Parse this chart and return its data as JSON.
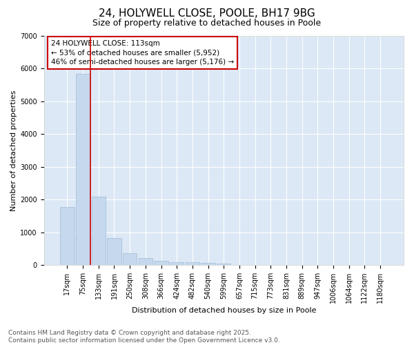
{
  "title1": "24, HOLYWELL CLOSE, POOLE, BH17 9BG",
  "title2": "Size of property relative to detached houses in Poole",
  "xlabel": "Distribution of detached houses by size in Poole",
  "ylabel": "Number of detached properties",
  "categories": [
    "17sqm",
    "75sqm",
    "133sqm",
    "191sqm",
    "250sqm",
    "308sqm",
    "366sqm",
    "424sqm",
    "482sqm",
    "540sqm",
    "599sqm",
    "657sqm",
    "715sqm",
    "773sqm",
    "831sqm",
    "889sqm",
    "947sqm",
    "1006sqm",
    "1064sqm",
    "1122sqm",
    "1180sqm"
  ],
  "values": [
    1780,
    5830,
    2090,
    830,
    370,
    220,
    130,
    90,
    80,
    60,
    50,
    5,
    3,
    2,
    1,
    1,
    1,
    1,
    1,
    1,
    1
  ],
  "bar_color": "#c5d8ed",
  "bar_edge_color": "#a0bcd8",
  "vline_color": "#cc0000",
  "vline_position": 1.5,
  "annotation_text": "24 HOLYWELL CLOSE: 113sqm\n← 53% of detached houses are smaller (5,952)\n46% of semi-detached houses are larger (5,176) →",
  "annotation_box_edge_color": "#cc0000",
  "annotation_bg": "#ffffff",
  "ylim": [
    0,
    7000
  ],
  "yticks": [
    0,
    1000,
    2000,
    3000,
    4000,
    5000,
    6000,
    7000
  ],
  "fig_bg_color": "#ffffff",
  "plot_bg_color": "#dce8f5",
  "title1_fontsize": 11,
  "title2_fontsize": 9,
  "ylabel_fontsize": 8,
  "xlabel_fontsize": 8,
  "tick_fontsize": 7,
  "annotation_fontsize": 7.5,
  "footer_fontsize": 6.5,
  "footer": "Contains HM Land Registry data © Crown copyright and database right 2025.\nContains public sector information licensed under the Open Government Licence v3.0."
}
